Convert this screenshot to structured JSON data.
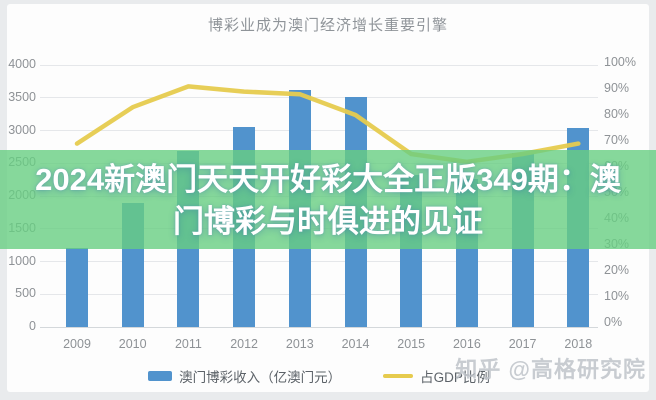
{
  "overlay": {
    "lines": [
      "2024新澳门天天开好彩大全正版349期：澳",
      "门博彩与时俱进的见证"
    ],
    "band_color": "#68ce82",
    "text_color": "#ffffff"
  },
  "watermark": "知乎 @高格研究院",
  "legend": [
    {
      "label": "澳门博彩收入（亿澳门元）",
      "swatch": "bar",
      "color": "#5193cd"
    },
    {
      "label": "占GDP比例",
      "swatch": "line",
      "color": "#e6cb4e"
    }
  ],
  "chart_data": {
    "type": "bar",
    "title": "博彩业成为澳门经济增长重要引擎",
    "categories": [
      "2009",
      "2010",
      "2011",
      "2012",
      "2013",
      "2014",
      "2015",
      "2016",
      "2017",
      "2018"
    ],
    "series": [
      {
        "name": "澳门博彩收入（亿澳门元）",
        "type": "bar",
        "axis": "left",
        "color": "#5193cd",
        "values": [
          1203,
          1896,
          2691,
          3052,
          3618,
          3515,
          2324,
          2265,
          2657,
          3038
        ]
      },
      {
        "name": "占GDP比例",
        "type": "line",
        "axis": "right",
        "color": "#e6cb4e",
        "unit": "%",
        "values": [
          69,
          83,
          91,
          89,
          88,
          80,
          65,
          62,
          65,
          69
        ]
      }
    ],
    "left_axis": {
      "min": 0,
      "max": 4000,
      "tick_labels": [
        "4000",
        "3500",
        "3000",
        "2500",
        "2000",
        "1500",
        "1000",
        "500",
        "0"
      ]
    },
    "right_axis": {
      "min": 0,
      "max": 100,
      "tick_labels": [
        "100%",
        "90%",
        "80%",
        "70%",
        "60%",
        "50%",
        "40%",
        "30%",
        "20%",
        "10%",
        "0%"
      ]
    },
    "grid": true,
    "legend_position": "bottom"
  }
}
